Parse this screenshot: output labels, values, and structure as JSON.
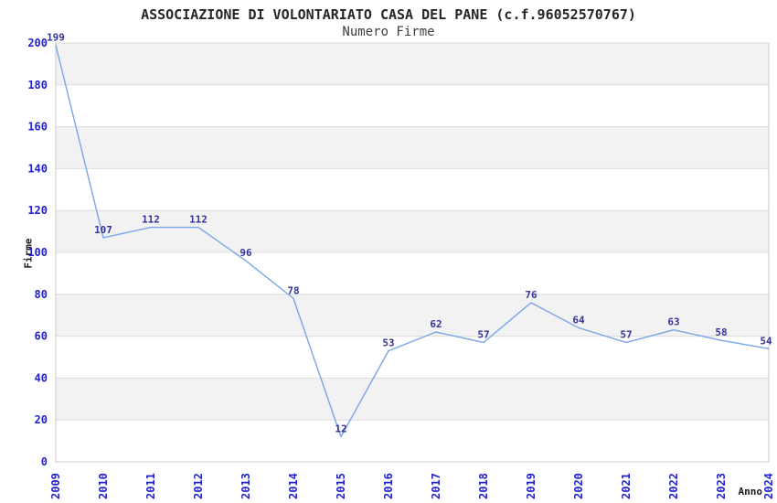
{
  "header": {
    "title": "ASSOCIAZIONE DI VOLONTARIATO CASA DEL PANE (c.f.96052570767)",
    "subtitle": "Numero Firme"
  },
  "axes": {
    "y_label": "Firme",
    "x_label": "Anno"
  },
  "chart_data": {
    "type": "line",
    "title": "ASSOCIAZIONE DI VOLONTARIATO CASA DEL PANE (c.f.96052570767)",
    "subtitle": "Numero Firme",
    "categories": [
      "2009",
      "2010",
      "2011",
      "2012",
      "2013",
      "2014",
      "2015",
      "2016",
      "2017",
      "2018",
      "2019",
      "2020",
      "2021",
      "2022",
      "2023",
      "2024"
    ],
    "values": [
      199,
      107,
      112,
      112,
      96,
      78,
      12,
      53,
      62,
      57,
      76,
      64,
      57,
      63,
      58,
      54
    ],
    "xlabel": "Anno",
    "ylabel": "Firme",
    "ylim": [
      0,
      200
    ],
    "ytick_step": 20,
    "grid": true,
    "legend_position": "none",
    "colors": {
      "line": "#7AA5E8",
      "data_label": "#333399",
      "tick_label": "#2222CC",
      "grid_line": "#DCDCDC",
      "plot_border": "#C9C9C9",
      "band_even": "#FFFFFF",
      "band_odd": "#F2F2F2",
      "background": "#FFFFFF"
    }
  }
}
